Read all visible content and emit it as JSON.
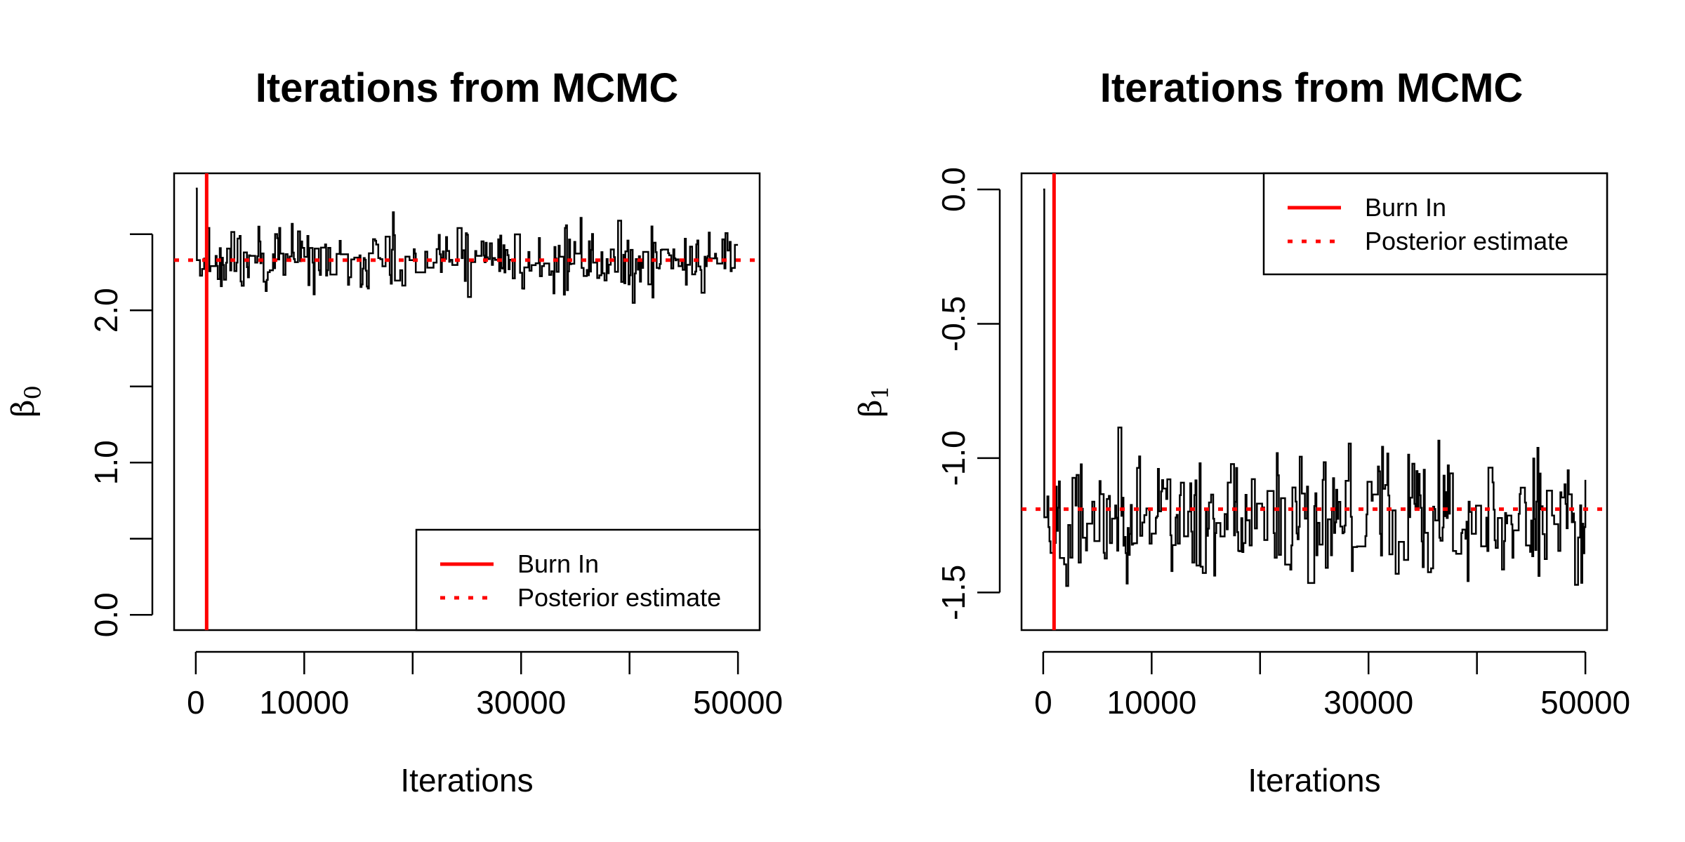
{
  "chart_data": [
    {
      "type": "line",
      "title": "Iterations from MCMC",
      "xlabel": "Iterations",
      "ylabel": "β",
      "ylabel_sub": "0",
      "xlim": [
        -2000,
        52000
      ],
      "ylim": [
        -0.1,
        2.9
      ],
      "x_ticks": [
        0,
        10000,
        20000,
        30000,
        40000,
        50000
      ],
      "x_tick_labels": [
        "0",
        "10000",
        "",
        "30000",
        "",
        "50000"
      ],
      "y_ticks": [
        0,
        0.5,
        1.0,
        1.5,
        2.0,
        2.5
      ],
      "y_tick_labels": [
        "0.0",
        "",
        "1.0",
        "",
        "2.0",
        ""
      ],
      "burn_in": 1000,
      "posterior_estimate": 2.33,
      "trace_start": 2.8,
      "trace_center": 2.33,
      "trace_spread": 0.11,
      "trace_min": 1.96,
      "trace_max": 2.72,
      "trace_n": 520,
      "seed": 11,
      "legend": {
        "position": "bottom-right",
        "entries": [
          {
            "label": "Burn In",
            "color": "#ff0000",
            "style": "solid"
          },
          {
            "label": "Posterior estimate",
            "color": "#ff0000",
            "style": "dotted"
          }
        ]
      },
      "grid": false
    },
    {
      "type": "line",
      "title": "Iterations from MCMC",
      "xlabel": "Iterations",
      "ylabel": "β",
      "ylabel_sub": "1",
      "xlim": [
        -2000,
        52000
      ],
      "ylim": [
        -1.64,
        0.06
      ],
      "x_ticks": [
        0,
        10000,
        20000,
        30000,
        40000,
        50000
      ],
      "x_tick_labels": [
        "0",
        "10000",
        "",
        "30000",
        "",
        "50000"
      ],
      "y_ticks": [
        0,
        -0.5,
        -1.0,
        -1.5
      ],
      "y_tick_labels": [
        "0.0",
        "-0.5",
        "-1.0",
        "-1.5"
      ],
      "burn_in": 1000,
      "posterior_estimate": -1.19,
      "trace_start": 0.0,
      "trace_center": -1.22,
      "trace_spread": 0.12,
      "trace_min": -1.58,
      "trace_max": -0.82,
      "trace_n": 520,
      "seed": 23,
      "legend": {
        "position": "top-right",
        "entries": [
          {
            "label": "Burn In",
            "color": "#ff0000",
            "style": "solid"
          },
          {
            "label": "Posterior estimate",
            "color": "#ff0000",
            "style": "dotted"
          }
        ]
      },
      "grid": false
    }
  ]
}
